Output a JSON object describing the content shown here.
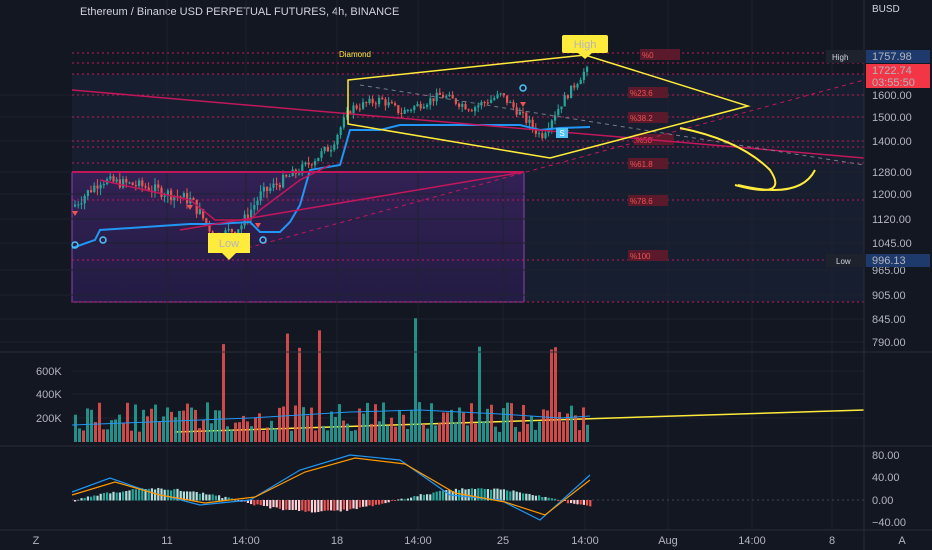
{
  "header": {
    "title": "Ethereum / Binance USD PERPETUAL FUTURES, 4h, BINANCE",
    "unit": "BUSD"
  },
  "chart_data": [
    {
      "type": "candlestick",
      "price_axis": {
        "ticks": [
          "1600.00",
          "1500.00",
          "1400.00",
          "1280.00",
          "1200.00",
          "1120.00",
          "1045.00",
          "965.00",
          "905.00",
          "845.00",
          "790.00"
        ],
        "tick_values": [
          1600,
          1500,
          1400,
          1280,
          1200,
          1120,
          1045,
          965,
          905,
          845,
          790
        ]
      },
      "time_axis": {
        "ticks": [
          "11",
          "14:00",
          "18",
          "14:00",
          "25",
          "14:00",
          "Aug",
          "14:00",
          "8"
        ]
      },
      "price_labels": [
        {
          "name": "High",
          "value": "1757.98"
        },
        {
          "name": "Last",
          "value": "1722.74"
        },
        {
          "name": "Countdown",
          "value": "03:55:50"
        },
        {
          "name": "Low",
          "value": "996.13"
        }
      ],
      "fib_levels": [
        {
          "label": "%0"
        },
        {
          "label": "%23.6"
        },
        {
          "label": "%38.2"
        },
        {
          "label": "%50"
        },
        {
          "label": "%61.8"
        },
        {
          "label": "%78.6"
        },
        {
          "label": "%100"
        }
      ],
      "annotations": {
        "pattern": "Diamond",
        "high_tag": "High",
        "low_tag": "Low",
        "marker_s": "S"
      },
      "price_range": {
        "min": 760,
        "max": 1800
      }
    },
    {
      "type": "bar",
      "name": "volume",
      "axis": {
        "ticks": [
          "600K",
          "400K",
          "200K"
        ],
        "tick_values": [
          600000,
          400000,
          200000
        ]
      }
    },
    {
      "type": "bar",
      "name": "oscillator",
      "axis": {
        "ticks": [
          "80.00",
          "40.00",
          "0.00",
          "−40.00"
        ],
        "tick_values": [
          80,
          40,
          0,
          -40
        ]
      },
      "series": [
        {
          "values": "histogram"
        },
        {
          "values": "signal"
        }
      ]
    }
  ],
  "footer": {
    "z_label": "Z",
    "a_label": "A"
  },
  "colors": {
    "up": "#26a69a",
    "down": "#ef5350",
    "fib": "#c2185b",
    "pattern": "#ffeb3b",
    "cloud": "#7b1fa2",
    "line": "#2196f3"
  }
}
